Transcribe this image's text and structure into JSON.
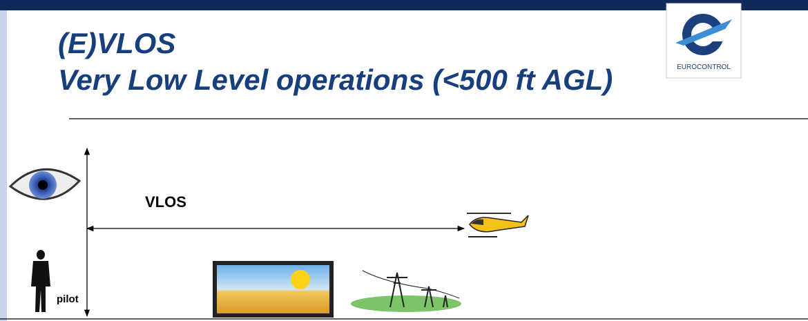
{
  "title": {
    "line1": "(E)VLOS",
    "line2": "Very Low Level operations (<500 ft AGL)"
  },
  "logo": {
    "label": "EUROCONTROL"
  },
  "diagram": {
    "range_label": "VLOS",
    "pilot_label": "pilot"
  }
}
